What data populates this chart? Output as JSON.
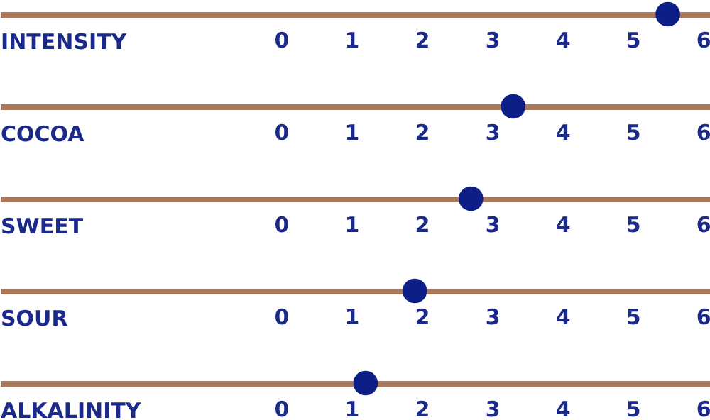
{
  "chart_data": [
    {
      "type": "scatter",
      "orientation": "horizontal",
      "categories": [
        "INTENSITY"
      ],
      "values": [
        5.5
      ],
      "color": "#0d1f86",
      "marker": "circle",
      "xlim": [
        -4,
        6.1
      ],
      "xticks": [
        0,
        1,
        2,
        3,
        4,
        5,
        6
      ]
    },
    {
      "type": "scatter",
      "orientation": "horizontal",
      "categories": [
        "COCOA"
      ],
      "values": [
        3.3
      ],
      "color": "#0d1f86",
      "marker": "circle",
      "xlim": [
        -4,
        6.1
      ],
      "xticks": [
        0,
        1,
        2,
        3,
        4,
        5,
        6
      ]
    },
    {
      "type": "scatter",
      "orientation": "horizontal",
      "categories": [
        "SWEET"
      ],
      "values": [
        2.7
      ],
      "color": "#0d1f86",
      "marker": "circle",
      "xlim": [
        -4,
        6.1
      ],
      "xticks": [
        0,
        1,
        2,
        3,
        4,
        5,
        6
      ]
    },
    {
      "type": "scatter",
      "orientation": "horizontal",
      "categories": [
        "SOUR"
      ],
      "values": [
        1.9
      ],
      "color": "#0d1f86",
      "marker": "circle",
      "xlim": [
        -4,
        6.1
      ],
      "xticks": [
        0,
        1,
        2,
        3,
        4,
        5,
        6
      ]
    },
    {
      "type": "scatter",
      "orientation": "horizontal",
      "categories": [
        "ALKALINITY"
      ],
      "values": [
        1.2
      ],
      "color": "#0d1f86",
      "marker": "circle",
      "xlim": [
        -4,
        6.1
      ],
      "xticks": [
        0,
        1,
        2,
        3,
        4,
        5,
        6
      ]
    }
  ]
}
